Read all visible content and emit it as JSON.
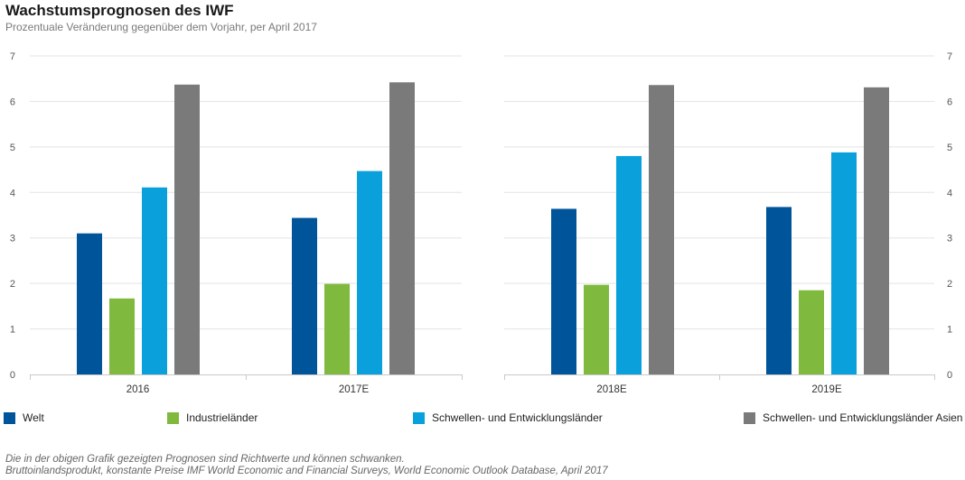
{
  "header": {
    "title": "Wachstumsprognosen des IWF",
    "subtitle": "Prozentuale Veränderung gegenüber dem Vorjahr, per April 2017"
  },
  "chart_data": {
    "type": "bar",
    "title": "Wachstumsprognosen des IWF",
    "ylim": [
      0,
      7
    ],
    "yticks": [
      "0",
      "1",
      "2",
      "3",
      "4",
      "5",
      "6",
      "7"
    ],
    "categories": [
      "2016",
      "2017E",
      "2018E",
      "2019E"
    ],
    "series": [
      {
        "name": "Welt",
        "color": "#00549a",
        "values": [
          3.1,
          3.44,
          3.64,
          3.68
        ]
      },
      {
        "name": "Industrieländer",
        "color": "#7fba3e",
        "values": [
          1.67,
          1.99,
          1.97,
          1.85
        ]
      },
      {
        "name": "Schwellen- und Entwicklungsländer",
        "color": "#0aa0dc",
        "values": [
          4.11,
          4.47,
          4.8,
          4.88
        ]
      },
      {
        "name": "Schwellen- und Entwicklungsländer Asien",
        "color": "#7a7a7a",
        "values": [
          6.37,
          6.42,
          6.36,
          6.31
        ]
      }
    ]
  },
  "footnotes": {
    "line1": "Die in der obigen Grafik gezeigten Prognosen sind Richtwerte und können schwanken.",
    "line2": "Bruttoinlandsprodukt, konstante Preise IMF World Economic and Financial Surveys, World Economic Outlook Database, April 2017"
  }
}
